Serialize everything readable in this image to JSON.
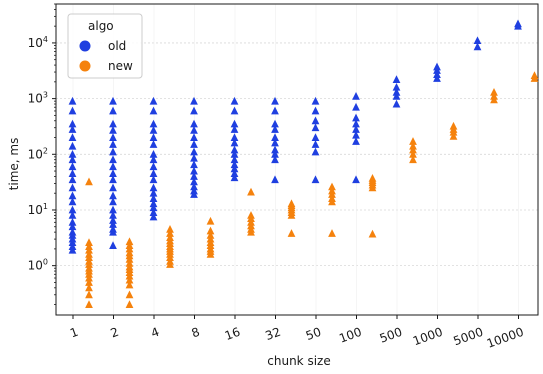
{
  "chart_data": {
    "type": "scatter",
    "xlabel": "chunk size",
    "ylabel": "time, ms",
    "y_scale": "log",
    "ylim": [
      0.13,
      50000
    ],
    "grid": true,
    "legend_position": "top-left",
    "legend_title": "algo",
    "categories": [
      "1",
      "2",
      "4",
      "8",
      "16",
      "32",
      "50",
      "100",
      "500",
      "1000",
      "5000",
      "10000"
    ],
    "y_ticks": [
      {
        "value": 1,
        "base": "10",
        "exp": "0"
      },
      {
        "value": 10,
        "base": "10",
        "exp": "1"
      },
      {
        "value": 100,
        "base": "10",
        "exp": "2"
      },
      {
        "value": 1000,
        "base": "10",
        "exp": "3"
      },
      {
        "value": 10000,
        "base": "10",
        "exp": "4"
      }
    ],
    "series": [
      {
        "name": "old",
        "color": "#1f3fe0",
        "points": [
          [
            0,
            900
          ],
          [
            0,
            600
          ],
          [
            0,
            350
          ],
          [
            0,
            280
          ],
          [
            0,
            200
          ],
          [
            0,
            140
          ],
          [
            0,
            100
          ],
          [
            0,
            80
          ],
          [
            0,
            60
          ],
          [
            0,
            45
          ],
          [
            0,
            35
          ],
          [
            0,
            25
          ],
          [
            0,
            18
          ],
          [
            0,
            14
          ],
          [
            0,
            10
          ],
          [
            0,
            8
          ],
          [
            0,
            6
          ],
          [
            0,
            5
          ],
          [
            0,
            4
          ],
          [
            0,
            3.5
          ],
          [
            0,
            3
          ],
          [
            0,
            2.6
          ],
          [
            0,
            2.2
          ],
          [
            0,
            1.9
          ],
          [
            1,
            900
          ],
          [
            1,
            600
          ],
          [
            1,
            350
          ],
          [
            1,
            270
          ],
          [
            1,
            200
          ],
          [
            1,
            150
          ],
          [
            1,
            110
          ],
          [
            1,
            80
          ],
          [
            1,
            60
          ],
          [
            1,
            45
          ],
          [
            1,
            35
          ],
          [
            1,
            25
          ],
          [
            1,
            18
          ],
          [
            1,
            14
          ],
          [
            1,
            10
          ],
          [
            1,
            8
          ],
          [
            1,
            6.5
          ],
          [
            1,
            5.5
          ],
          [
            1,
            4.5
          ],
          [
            1,
            4
          ],
          [
            1,
            2.3
          ],
          [
            2,
            900
          ],
          [
            2,
            600
          ],
          [
            2,
            350
          ],
          [
            2,
            270
          ],
          [
            2,
            200
          ],
          [
            2,
            150
          ],
          [
            2,
            100
          ],
          [
            2,
            80
          ],
          [
            2,
            60
          ],
          [
            2,
            45
          ],
          [
            2,
            35
          ],
          [
            2,
            25
          ],
          [
            2,
            20
          ],
          [
            2,
            16
          ],
          [
            2,
            13
          ],
          [
            2,
            11
          ],
          [
            2,
            9
          ],
          [
            2,
            7.5
          ],
          [
            3,
            900
          ],
          [
            3,
            600
          ],
          [
            3,
            350
          ],
          [
            3,
            270
          ],
          [
            3,
            200
          ],
          [
            3,
            150
          ],
          [
            3,
            110
          ],
          [
            3,
            85
          ],
          [
            3,
            65
          ],
          [
            3,
            50
          ],
          [
            3,
            40
          ],
          [
            3,
            32
          ],
          [
            3,
            26
          ],
          [
            3,
            22
          ],
          [
            3,
            19
          ],
          [
            4,
            900
          ],
          [
            4,
            600
          ],
          [
            4,
            350
          ],
          [
            4,
            280
          ],
          [
            4,
            200
          ],
          [
            4,
            160
          ],
          [
            4,
            120
          ],
          [
            4,
            100
          ],
          [
            4,
            80
          ],
          [
            4,
            65
          ],
          [
            4,
            55
          ],
          [
            4,
            45
          ],
          [
            4,
            38
          ],
          [
            5,
            900
          ],
          [
            5,
            600
          ],
          [
            5,
            350
          ],
          [
            5,
            280
          ],
          [
            5,
            200
          ],
          [
            5,
            160
          ],
          [
            5,
            120
          ],
          [
            5,
            100
          ],
          [
            5,
            80
          ],
          [
            5,
            35
          ],
          [
            6,
            900
          ],
          [
            6,
            600
          ],
          [
            6,
            400
          ],
          [
            6,
            300
          ],
          [
            6,
            200
          ],
          [
            6,
            150
          ],
          [
            6,
            110
          ],
          [
            6,
            35
          ],
          [
            7,
            1100
          ],
          [
            7,
            700
          ],
          [
            7,
            450
          ],
          [
            7,
            350
          ],
          [
            7,
            280
          ],
          [
            7,
            220
          ],
          [
            7,
            170
          ],
          [
            7,
            35
          ],
          [
            8,
            2200
          ],
          [
            8,
            1600
          ],
          [
            8,
            1300
          ],
          [
            8,
            1100
          ],
          [
            8,
            800
          ],
          [
            9,
            3700
          ],
          [
            9,
            3200
          ],
          [
            9,
            2700
          ],
          [
            9,
            2300
          ],
          [
            10,
            11000
          ],
          [
            10,
            8500
          ],
          [
            11,
            22000
          ],
          [
            11,
            20000
          ]
        ]
      },
      {
        "name": "new",
        "color": "#f5820d",
        "points": [
          [
            0,
            32
          ],
          [
            0,
            2.6
          ],
          [
            0,
            2.2
          ],
          [
            0,
            1.9
          ],
          [
            0,
            1.6
          ],
          [
            0,
            1.4
          ],
          [
            0,
            1.2
          ],
          [
            0,
            1.05
          ],
          [
            0,
            0.9
          ],
          [
            0,
            0.8
          ],
          [
            0,
            0.7
          ],
          [
            0,
            0.6
          ],
          [
            0,
            0.5
          ],
          [
            0,
            0.4
          ],
          [
            0,
            0.3
          ],
          [
            0,
            0.2
          ],
          [
            1,
            2.7
          ],
          [
            1,
            2.3
          ],
          [
            1,
            2.0
          ],
          [
            1,
            1.7
          ],
          [
            1,
            1.5
          ],
          [
            1,
            1.3
          ],
          [
            1,
            1.1
          ],
          [
            1,
            0.95
          ],
          [
            1,
            0.85
          ],
          [
            1,
            0.75
          ],
          [
            1,
            0.65
          ],
          [
            1,
            0.55
          ],
          [
            1,
            0.45
          ],
          [
            1,
            0.3
          ],
          [
            1,
            0.2
          ],
          [
            2,
            4.5
          ],
          [
            2,
            3.8
          ],
          [
            2,
            3.2
          ],
          [
            2,
            2.8
          ],
          [
            2,
            2.5
          ],
          [
            2,
            2.2
          ],
          [
            2,
            2.0
          ],
          [
            2,
            1.8
          ],
          [
            2,
            1.6
          ],
          [
            2,
            1.4
          ],
          [
            2,
            1.2
          ],
          [
            2,
            1.05
          ],
          [
            3,
            6.3
          ],
          [
            3,
            4.2
          ],
          [
            3,
            3.5
          ],
          [
            3,
            3.0
          ],
          [
            3,
            2.6
          ],
          [
            3,
            2.3
          ],
          [
            3,
            2.0
          ],
          [
            3,
            1.8
          ],
          [
            3,
            1.6
          ],
          [
            4,
            21
          ],
          [
            4,
            8
          ],
          [
            4,
            7
          ],
          [
            4,
            6
          ],
          [
            4,
            5.2
          ],
          [
            4,
            4.5
          ],
          [
            4,
            4
          ],
          [
            5,
            13
          ],
          [
            5,
            12
          ],
          [
            5,
            11
          ],
          [
            5,
            10
          ],
          [
            5,
            9
          ],
          [
            5,
            8
          ],
          [
            5,
            3.8
          ],
          [
            6,
            26
          ],
          [
            6,
            22
          ],
          [
            6,
            19
          ],
          [
            6,
            16
          ],
          [
            6,
            14
          ],
          [
            6,
            3.8
          ],
          [
            7,
            37
          ],
          [
            7,
            34
          ],
          [
            7,
            31
          ],
          [
            7,
            28
          ],
          [
            7,
            25
          ],
          [
            7,
            3.7
          ],
          [
            8,
            170
          ],
          [
            8,
            140
          ],
          [
            8,
            120
          ],
          [
            8,
            100
          ],
          [
            8,
            80
          ],
          [
            9,
            320
          ],
          [
            9,
            280
          ],
          [
            9,
            250
          ],
          [
            9,
            210
          ],
          [
            10,
            1300
          ],
          [
            10,
            1100
          ],
          [
            10,
            950
          ],
          [
            11,
            2600
          ],
          [
            11,
            2300
          ]
        ]
      }
    ]
  }
}
